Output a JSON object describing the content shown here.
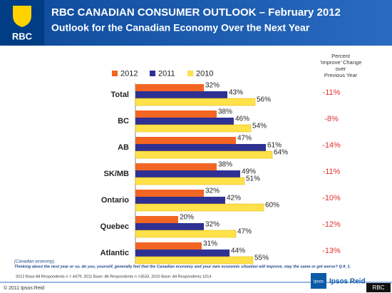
{
  "header": {
    "logo": "RBC",
    "title": "RBC CANADIAN CONSUMER OUTLOOK – February 2012",
    "subtitle": "Outlook for the Canadian Economy Over the Next Year"
  },
  "chart_data": {
    "type": "bar",
    "orientation": "horizontal",
    "categories": [
      "Total",
      "BC",
      "AB",
      "SK/MB",
      "Ontario",
      "Quebec",
      "Atlantic"
    ],
    "series": [
      {
        "name": "2012",
        "color": "#f26522",
        "values": [
          32,
          38,
          47,
          38,
          32,
          20,
          31
        ],
        "value_labels": [
          "32%",
          "38%",
          "47%",
          "38%",
          "32%",
          "20%",
          "31%"
        ]
      },
      {
        "name": "2011",
        "color": "#2e3192",
        "values": [
          43,
          46,
          61,
          49,
          42,
          32,
          44
        ],
        "value_labels": [
          "43%",
          "46%",
          "61%",
          "49%",
          "42%",
          "32%",
          "44%"
        ]
      },
      {
        "name": "2010",
        "color": "#ffe14a",
        "values": [
          56,
          54,
          64,
          51,
          60,
          47,
          55
        ],
        "value_labels": [
          "56%",
          "54%",
          "64%",
          "51%",
          "60%",
          "47%",
          "55%"
        ]
      }
    ],
    "xlim": [
      0,
      70
    ],
    "change_header": [
      "Percent",
      "‘Improve’ Change",
      "over",
      "Previous Year"
    ],
    "change": [
      "-11%",
      "-8%",
      "-14%",
      "-11%",
      "-10%",
      "-12%",
      "-13%"
    ]
  },
  "footer": {
    "note": "(Canadian economy).",
    "question": "Thinking about the next year or so, do you, yourself, generally feel that the Canadian economy and your own economic situation will improve, stay the same or get worse?  Q.9_1.",
    "base": "2012 Base All Respondents n = 4479; 2011 Base: All Respondents n =3533, 2010 Base: All Respondents 1014",
    "copyright": "© 2011 Ipsos Reid",
    "ipsos": "Ipsos",
    "ipsos_reid": "Ipsos Reid",
    "watermark": "RBC"
  }
}
